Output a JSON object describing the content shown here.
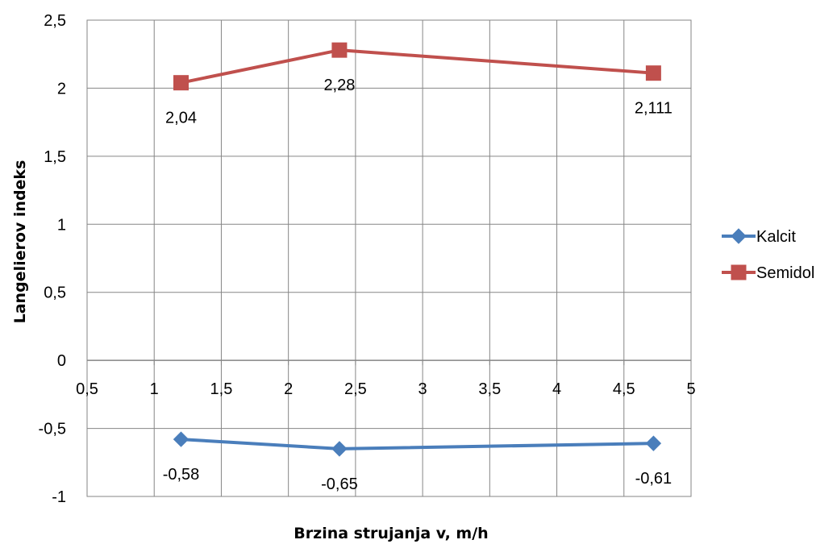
{
  "chart_data": {
    "type": "line",
    "xlabel": "Brzina strujanja v, m/h",
    "ylabel": "Langelierov indeks",
    "xlim": [
      0.5,
      5
    ],
    "ylim": [
      -1,
      2.5
    ],
    "x_ticks": [
      "0,5",
      "1",
      "1,5",
      "2",
      "2,5",
      "3",
      "3,5",
      "4",
      "4,5",
      "5"
    ],
    "y_ticks": [
      "2,5",
      "2",
      "1,5",
      "1",
      "0,5",
      "0",
      "-0,5",
      "-1"
    ],
    "grid": true,
    "legend_position": "right",
    "series": [
      {
        "name": "Kalcit",
        "color": "#4a7ebb",
        "marker": "diamond",
        "x": [
          1.2,
          2.38,
          4.72
        ],
        "y": [
          -0.58,
          -0.65,
          -0.61
        ],
        "labels": [
          "-0,58",
          "-0,65",
          "-0,61"
        ]
      },
      {
        "name": "Semidol",
        "color": "#c0504d",
        "marker": "square",
        "x": [
          1.2,
          2.38,
          4.72
        ],
        "y": [
          2.04,
          2.28,
          2.111
        ],
        "labels": [
          "2,04",
          "2,28",
          "2,111"
        ]
      }
    ]
  }
}
